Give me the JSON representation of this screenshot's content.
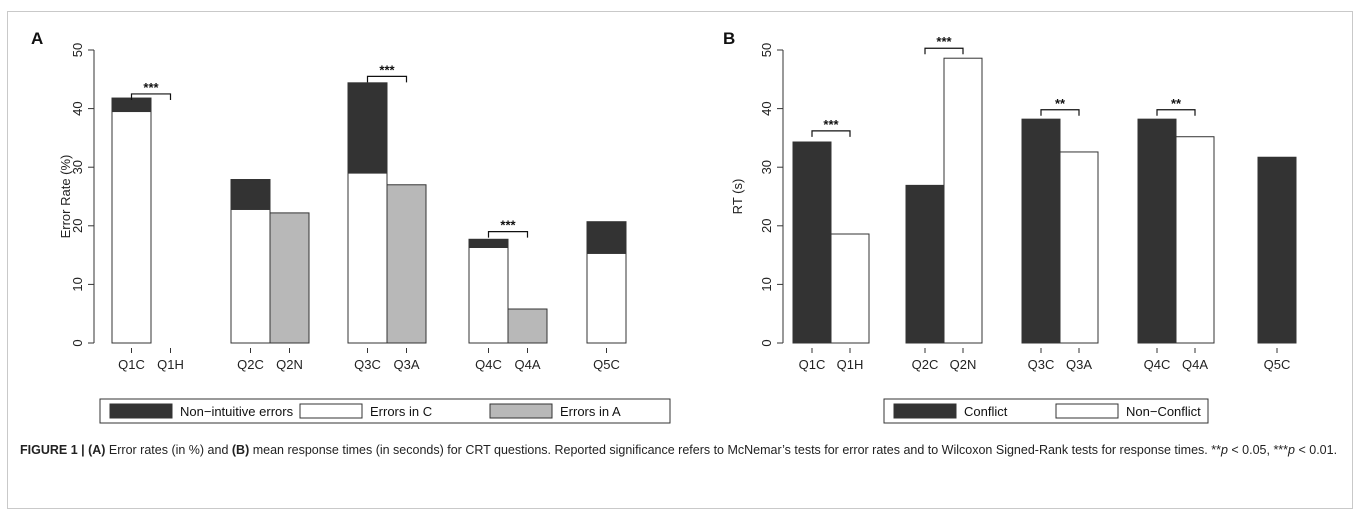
{
  "caption": {
    "lead": "FIGURE 1 | ",
    "a_tag": "(A)",
    "text1": " Error rates (in %) and ",
    "b_tag": "(B)",
    "text2": " mean response times (in seconds) for CRT questions. Reported significance refers to McNemar’s tests for error rates and to Wilcoxon Signed-Rank tests for response times. **",
    "p": "p",
    "text3": " < 0.05, ***",
    "text4": " < 0.01."
  },
  "chart_data": [
    {
      "panel": "A",
      "type": "bar",
      "stacked": true,
      "ylabel": "Error Rate (%)",
      "ylim": [
        0,
        50
      ],
      "yticks": [
        0,
        10,
        20,
        30,
        40,
        50
      ],
      "bars": [
        {
          "label": "Q1C",
          "group": 1,
          "segments": [
            {
              "series": "Errors in C",
              "value": 39.5
            },
            {
              "series": "Non−intuitive errors",
              "value": 2.3
            }
          ]
        },
        {
          "label": "Q1H",
          "group": 1,
          "segments": []
        },
        {
          "label": "Q2C",
          "group": 2,
          "segments": [
            {
              "series": "Errors in C",
              "value": 22.8
            },
            {
              "series": "Non−intuitive errors",
              "value": 5.1
            }
          ]
        },
        {
          "label": "Q2N",
          "group": 2,
          "segments": [
            {
              "series": "Errors in A",
              "value": 22.2
            }
          ]
        },
        {
          "label": "Q3C",
          "group": 3,
          "segments": [
            {
              "series": "Errors in C",
              "value": 29.0
            },
            {
              "series": "Non−intuitive errors",
              "value": 15.4
            }
          ]
        },
        {
          "label": "Q3A",
          "group": 3,
          "segments": [
            {
              "series": "Errors in A",
              "value": 27.0
            }
          ]
        },
        {
          "label": "Q4C",
          "group": 4,
          "segments": [
            {
              "series": "Errors in C",
              "value": 16.3
            },
            {
              "series": "Non−intuitive errors",
              "value": 1.4
            }
          ]
        },
        {
          "label": "Q4A",
          "group": 4,
          "segments": [
            {
              "series": "Errors in A",
              "value": 5.8
            }
          ]
        },
        {
          "label": "Q5C",
          "group": 5,
          "segments": [
            {
              "series": "Errors in C",
              "value": 15.3
            },
            {
              "series": "Non−intuitive errors",
              "value": 5.4
            }
          ]
        }
      ],
      "significance": [
        {
          "from": "Q1C",
          "to": "Q1H",
          "label": "***",
          "y": 42.5
        },
        {
          "from": "Q3C",
          "to": "Q3A",
          "label": "***",
          "y": 45.5
        },
        {
          "from": "Q4C",
          "to": "Q4A",
          "label": "***",
          "y": 19.0
        }
      ],
      "legend": [
        {
          "name": "Non−intuitive errors",
          "color": "#333333"
        },
        {
          "name": "Errors in C",
          "color": "#ffffff"
        },
        {
          "name": "Errors in A",
          "color": "#b8b8b8"
        }
      ],
      "legend_position": "bottom"
    },
    {
      "panel": "B",
      "type": "bar",
      "ylabel": "RT (s)",
      "ylim": [
        0,
        50
      ],
      "yticks": [
        0,
        10,
        20,
        30,
        40,
        50
      ],
      "bars": [
        {
          "label": "Q1C",
          "group": 1,
          "series": "Conflict",
          "value": 34.3
        },
        {
          "label": "Q1H",
          "group": 1,
          "series": "Non−Conflict",
          "value": 18.6
        },
        {
          "label": "Q2C",
          "group": 2,
          "series": "Conflict",
          "value": 26.9
        },
        {
          "label": "Q2N",
          "group": 2,
          "series": "Non−Conflict",
          "value": 48.6
        },
        {
          "label": "Q3C",
          "group": 3,
          "series": "Conflict",
          "value": 38.2
        },
        {
          "label": "Q3A",
          "group": 3,
          "series": "Non−Conflict",
          "value": 32.6
        },
        {
          "label": "Q4C",
          "group": 4,
          "series": "Conflict",
          "value": 38.2
        },
        {
          "label": "Q4A",
          "group": 4,
          "series": "Non−Conflict",
          "value": 35.2
        },
        {
          "label": "Q5C",
          "group": 5,
          "series": "Conflict",
          "value": 31.7
        }
      ],
      "significance": [
        {
          "from": "Q1C",
          "to": "Q1H",
          "label": "***",
          "y": 36.2
        },
        {
          "from": "Q2C",
          "to": "Q2N",
          "label": "***",
          "y": 50.3
        },
        {
          "from": "Q3C",
          "to": "Q3A",
          "label": "**",
          "y": 39.8
        },
        {
          "from": "Q4C",
          "to": "Q4A",
          "label": "**",
          "y": 39.8
        }
      ],
      "legend": [
        {
          "name": "Conflict",
          "color": "#333333"
        },
        {
          "name": "Non−Conflict",
          "color": "#ffffff"
        }
      ],
      "legend_position": "bottom"
    }
  ]
}
